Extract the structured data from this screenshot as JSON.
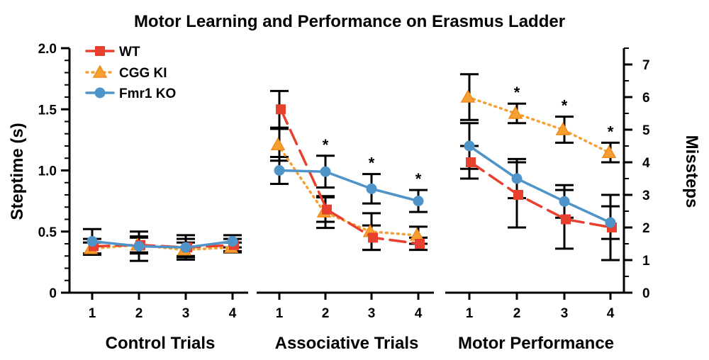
{
  "chart_data": {
    "type": "line",
    "title": "Motor Learning and Performance on Erasmus Ladder",
    "ylabel_left": "Steptime (s)",
    "ylabel_right": "Missteps",
    "ylim_left": [
      0,
      2.0
    ],
    "yticks_left": [
      "0",
      "0.5",
      "1.0",
      "1.5",
      "2.0"
    ],
    "ylim_right": [
      0,
      7.5
    ],
    "yticks_right": [
      "0",
      "1",
      "2",
      "3",
      "4",
      "5",
      "6",
      "7"
    ],
    "legend": {
      "placement": "top-left",
      "entries": [
        "WT",
        "CGG KI",
        "Fmr1 KO"
      ]
    },
    "colors": {
      "WT": "#e8402e",
      "CGG KI": "#f5a031",
      "Fmr1 KO": "#4f94c8",
      "error": "#000000"
    },
    "categories": [
      "1",
      "2",
      "3",
      "4"
    ],
    "panels": [
      {
        "name": "Control Trials",
        "axis": "left",
        "stars": [
          false,
          false,
          false,
          false
        ],
        "series": [
          {
            "name": "WT",
            "values": [
              0.38,
              0.39,
              0.37,
              0.39
            ],
            "errors": [
              0.06,
              0.07,
              0.07,
              0.05
            ]
          },
          {
            "name": "CGG KI",
            "values": [
              0.36,
              0.39,
              0.35,
              0.37
            ],
            "errors": [
              0.05,
              0.06,
              0.06,
              0.04
            ]
          },
          {
            "name": "Fmr1 KO",
            "values": [
              0.42,
              0.38,
              0.37,
              0.42
            ],
            "errors": [
              0.1,
              0.12,
              0.1,
              0.05
            ]
          }
        ]
      },
      {
        "name": "Associative Trials",
        "axis": "left",
        "stars": [
          false,
          true,
          true,
          true
        ],
        "series": [
          {
            "name": "WT",
            "values": [
              1.5,
              0.68,
              0.45,
              0.4
            ],
            "errors": [
              0.15,
              0.1,
              0.1,
              0.05
            ]
          },
          {
            "name": "CGG KI",
            "values": [
              1.21,
              0.66,
              0.5,
              0.47
            ],
            "errors": [
              0.13,
              0.13,
              0.15,
              0.07
            ]
          },
          {
            "name": "Fmr1 KO",
            "values": [
              1.0,
              0.99,
              0.85,
              0.75
            ],
            "errors": [
              0.11,
              0.13,
              0.12,
              0.09
            ]
          }
        ]
      },
      {
        "name": "Motor Performance",
        "axis": "right",
        "stars": [
          false,
          true,
          true,
          true
        ],
        "series": [
          {
            "name": "WT",
            "values": [
              4.0,
              3.0,
              2.25,
              2.0
            ],
            "errors": [
              0.5,
              1.0,
              0.9,
              1.0
            ]
          },
          {
            "name": "CGG KI",
            "values": [
              6.0,
              5.5,
              5.0,
              4.3
            ],
            "errors": [
              0.7,
              0.3,
              0.4,
              0.3
            ]
          },
          {
            "name": "Fmr1 KO",
            "values": [
              4.5,
              3.5,
              2.8,
              2.15
            ],
            "errors": [
              0.7,
              0.6,
              0.5,
              0.5
            ]
          }
        ]
      }
    ]
  }
}
